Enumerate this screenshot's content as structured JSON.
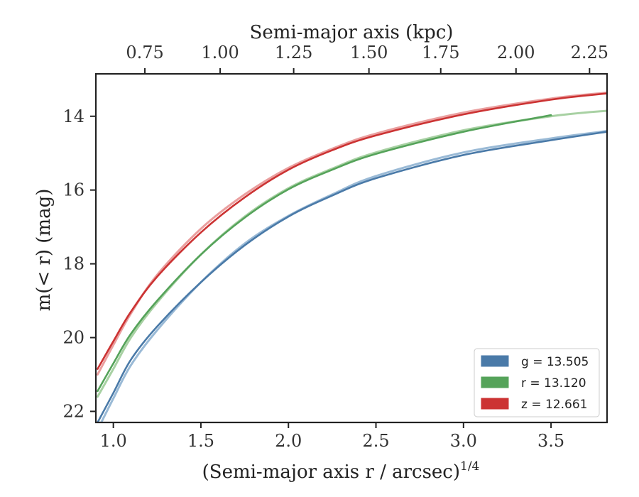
{
  "chart_data": {
    "type": "line",
    "title": "",
    "xlabel": "(Semi-major axis r / arcsec)",
    "xlabel_exponent": "1/4",
    "ylabel": "m(< r) (mag)",
    "top_xlabel": "Semi-major axis (kpc)",
    "xlim": [
      0.9,
      3.82
    ],
    "ylim": [
      22.3,
      12.85
    ],
    "y_inverted": true,
    "xticks": [
      1.0,
      1.5,
      2.0,
      2.5,
      3.0,
      3.5
    ],
    "xtick_labels": [
      "1.0",
      "1.5",
      "2.0",
      "2.5",
      "3.0",
      "3.5"
    ],
    "yticks": [
      14,
      16,
      18,
      20,
      22
    ],
    "ytick_labels": [
      "14",
      "16",
      "18",
      "20",
      "22"
    ],
    "top_xticks_kpc": [
      0.75,
      1.0,
      1.25,
      1.5,
      1.75,
      2.0,
      2.25
    ],
    "top_xtick_labels": [
      "0.75",
      "1.00",
      "1.25",
      "1.50",
      "1.75",
      "2.00",
      "2.25"
    ],
    "top_xtick_positions": [
      1.18,
      1.61,
      2.03,
      2.46,
      2.87,
      3.3,
      3.72
    ],
    "grid": false,
    "legend_position": "bottom-right",
    "series": [
      {
        "name": "g",
        "legend_label": "g = 13.505",
        "color": "#4a7aa8",
        "light_color": "#8fb2d2",
        "x": [
          0.91,
          1.0,
          1.1,
          1.25,
          1.5,
          1.75,
          2.0,
          2.25,
          2.5,
          3.0,
          3.5,
          3.82
        ],
        "y": [
          22.3,
          21.5,
          20.6,
          19.7,
          18.5,
          17.5,
          16.72,
          16.15,
          15.68,
          15.05,
          14.65,
          14.42
        ],
        "light_x": [
          0.91,
          1.0,
          1.1,
          1.25,
          1.5,
          1.75,
          2.0,
          2.25,
          2.5,
          3.0,
          3.5,
          3.82
        ],
        "light_y": [
          22.5,
          21.65,
          20.75,
          19.8,
          18.5,
          17.45,
          16.7,
          16.12,
          15.62,
          14.98,
          14.6,
          14.4
        ]
      },
      {
        "name": "r",
        "legend_label": "r = 13.120",
        "color": "#55a35a",
        "light_color": "#9fcc99",
        "x": [
          0.91,
          1.0,
          1.1,
          1.25,
          1.5,
          1.75,
          2.0,
          2.25,
          2.5,
          3.0,
          3.5
        ],
        "y": [
          21.45,
          20.7,
          19.9,
          19.0,
          17.75,
          16.75,
          15.98,
          15.45,
          15.02,
          14.42,
          13.97
        ],
        "light_x": [
          0.91,
          1.0,
          1.1,
          1.25,
          1.5,
          1.75,
          2.0,
          2.25,
          2.5,
          3.0,
          3.5,
          3.82
        ],
        "light_y": [
          21.6,
          20.85,
          20.0,
          19.05,
          17.75,
          16.72,
          15.95,
          15.42,
          14.98,
          14.38,
          14.0,
          13.85
        ]
      },
      {
        "name": "z",
        "legend_label": "z = 12.661",
        "color": "#cc3333",
        "light_color": "#e89595",
        "x": [
          0.91,
          1.0,
          1.1,
          1.25,
          1.5,
          1.75,
          2.0,
          2.25,
          2.5,
          3.0,
          3.5,
          3.82
        ],
        "y": [
          20.85,
          20.1,
          19.3,
          18.35,
          17.15,
          16.2,
          15.45,
          14.92,
          14.52,
          13.95,
          13.55,
          13.38
        ],
        "light_x": [
          0.91,
          1.0,
          1.1,
          1.25,
          1.5,
          1.75,
          2.0,
          2.25,
          2.5,
          3.0,
          3.5,
          3.82
        ],
        "light_y": [
          21.0,
          20.2,
          19.35,
          18.3,
          17.05,
          16.12,
          15.4,
          14.88,
          14.47,
          13.9,
          13.52,
          13.36
        ]
      }
    ]
  }
}
